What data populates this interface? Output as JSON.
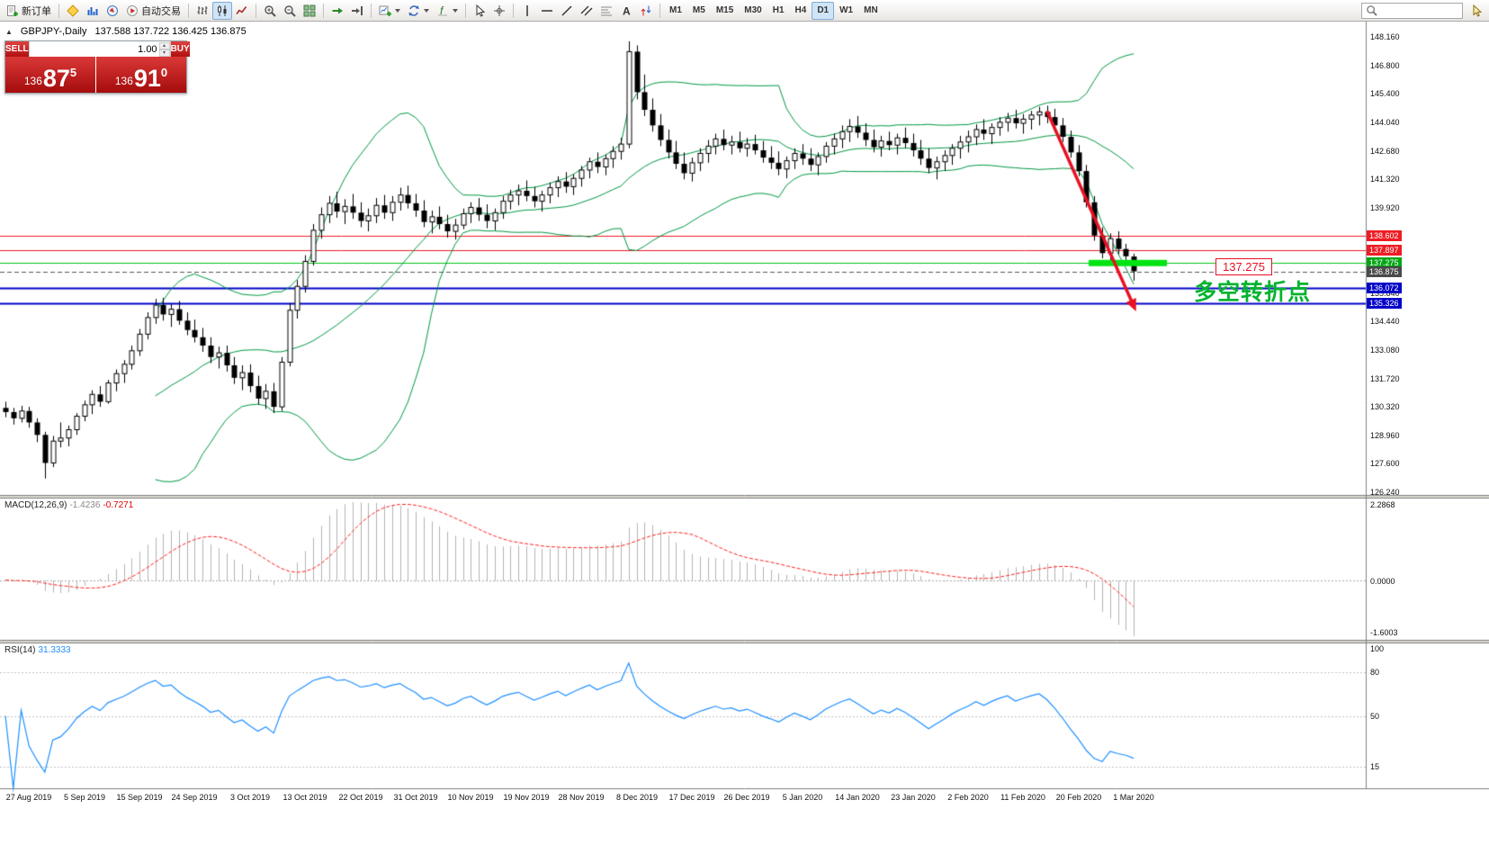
{
  "toolbar": {
    "groups": [
      {
        "items": [
          {
            "icon": "new-order",
            "label": "新订单",
            "name": "new-order-button"
          }
        ]
      },
      {
        "items": [
          {
            "icon": "metaeditor",
            "name": "metaeditor-button"
          },
          {
            "icon": "market-watch",
            "name": "market-watch-button"
          },
          {
            "icon": "navigator",
            "name": "navigator-button"
          },
          {
            "icon": "autotrading",
            "label": "自动交易",
            "name": "autotrading-button"
          }
        ]
      },
      {
        "items": [
          {
            "icon": "bar-chart",
            "name": "bar-chart-button"
          },
          {
            "icon": "candlestick",
            "name": "candlestick-button",
            "active": true
          },
          {
            "icon": "line-chart",
            "name": "line-chart-button"
          }
        ]
      },
      {
        "items": [
          {
            "icon": "zoom-in",
            "name": "zoom-in-button"
          },
          {
            "icon": "zoom-out",
            "name": "zoom-out-button"
          },
          {
            "icon": "tile-windows",
            "name": "tile-windows-button"
          }
        ]
      },
      {
        "items": [
          {
            "icon": "auto-scroll",
            "name": "auto-scroll-button"
          },
          {
            "icon": "chart-shift",
            "name": "chart-shift-button"
          }
        ]
      },
      {
        "items": [
          {
            "icon": "new-chart",
            "name": "new-chart-button",
            "dropdown": true
          },
          {
            "icon": "profiles",
            "name": "profiles-button",
            "dropdown": true
          },
          {
            "icon": "indicators",
            "name": "indicators-button",
            "dropdown": true
          }
        ]
      },
      {
        "items": [
          {
            "icon": "cursor",
            "name": "cursor-button"
          },
          {
            "icon": "crosshair",
            "name": "crosshair-button"
          }
        ]
      },
      {
        "items": [
          {
            "icon": "vertical-line",
            "name": "vertical-line-button"
          },
          {
            "icon": "horizontal-line",
            "name": "horizontal-line-button"
          },
          {
            "icon": "trendline",
            "name": "trendline-button"
          },
          {
            "icon": "channel",
            "name": "channel-button"
          },
          {
            "icon": "fibonacci",
            "name": "fibonacci-button"
          },
          {
            "icon": "text-label",
            "name": "text-button"
          },
          {
            "icon": "arrows",
            "name": "arrows-button"
          }
        ]
      }
    ],
    "timeframes": {
      "items": [
        "M1",
        "M5",
        "M15",
        "M30",
        "H1",
        "H4",
        "D1",
        "W1",
        "MN"
      ],
      "active": "D1"
    },
    "search_value": ""
  },
  "chart": {
    "title": "GBPJPY-,Daily",
    "ohlc_line": "137.588 137.722 136.425 136.875",
    "one_click": {
      "sell_label": "SELL",
      "buy_label": "BUY",
      "volume": "1.00",
      "sell_price": {
        "prefix": "136",
        "big": "87",
        "sup": "5"
      },
      "buy_price": {
        "prefix": "136",
        "big": "91",
        "sup": "0"
      }
    },
    "search_value": ""
  },
  "chart_data": {
    "type": "candlestick",
    "symbol": "GBPJPY",
    "period": "Daily",
    "title": "GBPJPY-,Daily",
    "ohlc_display": {
      "open": "137.588",
      "high": "137.722",
      "low": "136.425",
      "close": "136.875"
    },
    "ylim": [
      126.24,
      148.16
    ],
    "price_axis_labels": [
      "148.160",
      "146.800",
      "145.400",
      "144.040",
      "142.680",
      "141.320",
      "139.920",
      "138.560",
      "137.200",
      "135.840",
      "134.440",
      "133.080",
      "131.720",
      "130.320",
      "128.960",
      "127.600",
      "126.240"
    ],
    "time_axis_labels": [
      "27 Aug 2019",
      "5 Sep 2019",
      "15 Sep 2019",
      "24 Sep 2019",
      "3 Oct 2019",
      "13 Oct 2019",
      "22 Oct 2019",
      "31 Oct 2019",
      "10 Nov 2019",
      "19 Nov 2019",
      "28 Nov 2019",
      "8 Dec 2019",
      "17 Dec 2019",
      "26 Dec 2019",
      "5 Jan 2020",
      "14 Jan 2020",
      "23 Jan 2020",
      "2 Feb 2020",
      "11 Feb 2020",
      "20 Feb 2020",
      "1 Mar 2020"
    ],
    "candles": [
      [
        130.3,
        130.6,
        129.85,
        130.1
      ],
      [
        130.1,
        130.3,
        129.5,
        129.8
      ],
      [
        129.8,
        130.4,
        129.6,
        130.15
      ],
      [
        130.15,
        130.35,
        129.35,
        129.6
      ],
      [
        129.6,
        129.8,
        128.65,
        129.0
      ],
      [
        129.0,
        129.15,
        126.9,
        127.65
      ],
      [
        127.65,
        128.95,
        127.45,
        128.7
      ],
      [
        128.7,
        129.6,
        128.4,
        128.85
      ],
      [
        128.85,
        129.45,
        128.45,
        129.25
      ],
      [
        129.25,
        130.05,
        129.0,
        129.9
      ],
      [
        129.9,
        130.65,
        129.65,
        130.45
      ],
      [
        130.45,
        131.15,
        130.0,
        130.95
      ],
      [
        130.95,
        131.35,
        130.35,
        130.6
      ],
      [
        130.6,
        131.65,
        130.5,
        131.5
      ],
      [
        131.5,
        132.15,
        131.1,
        131.95
      ],
      [
        131.95,
        132.6,
        131.5,
        132.4
      ],
      [
        132.4,
        133.3,
        132.15,
        133.05
      ],
      [
        133.05,
        134.1,
        132.8,
        133.85
      ],
      [
        133.85,
        134.9,
        133.6,
        134.65
      ],
      [
        134.65,
        135.55,
        134.35,
        135.25
      ],
      [
        135.25,
        135.6,
        134.5,
        134.8
      ],
      [
        134.8,
        135.3,
        134.2,
        135.05
      ],
      [
        135.05,
        135.45,
        134.3,
        134.5
      ],
      [
        134.5,
        134.9,
        133.8,
        134.05
      ],
      [
        134.05,
        134.55,
        133.45,
        133.7
      ],
      [
        133.7,
        134.15,
        133.0,
        133.3
      ],
      [
        133.3,
        133.7,
        132.45,
        132.75
      ],
      [
        132.75,
        133.25,
        132.2,
        132.95
      ],
      [
        132.95,
        133.3,
        132.05,
        132.35
      ],
      [
        132.35,
        132.75,
        131.45,
        131.75
      ],
      [
        131.75,
        132.35,
        131.15,
        132.0
      ],
      [
        132.0,
        132.4,
        131.05,
        131.35
      ],
      [
        131.35,
        131.85,
        130.45,
        130.75
      ],
      [
        130.75,
        131.45,
        130.25,
        131.1
      ],
      [
        131.1,
        131.5,
        130.05,
        130.35
      ],
      [
        130.35,
        132.75,
        130.15,
        132.5
      ],
      [
        132.5,
        135.35,
        132.3,
        135.0
      ],
      [
        135.0,
        136.45,
        134.6,
        136.15
      ],
      [
        136.15,
        137.65,
        135.85,
        137.35
      ],
      [
        137.35,
        139.15,
        137.15,
        138.85
      ],
      [
        138.85,
        139.95,
        138.45,
        139.6
      ],
      [
        139.6,
        140.5,
        139.2,
        140.15
      ],
      [
        140.15,
        140.7,
        139.45,
        139.75
      ],
      [
        139.75,
        140.35,
        139.15,
        140.0
      ],
      [
        140.0,
        140.6,
        139.4,
        139.7
      ],
      [
        139.7,
        140.2,
        139.0,
        139.3
      ],
      [
        139.3,
        139.9,
        138.8,
        139.55
      ],
      [
        139.55,
        140.4,
        139.2,
        140.05
      ],
      [
        140.05,
        140.55,
        139.4,
        139.7
      ],
      [
        139.7,
        140.5,
        139.3,
        140.2
      ],
      [
        140.2,
        140.9,
        139.8,
        140.55
      ],
      [
        140.55,
        141.0,
        139.9,
        140.15
      ],
      [
        140.15,
        140.6,
        139.5,
        139.8
      ],
      [
        139.8,
        140.3,
        139.0,
        139.25
      ],
      [
        139.25,
        139.8,
        138.7,
        139.5
      ],
      [
        139.5,
        140.0,
        138.9,
        139.15
      ],
      [
        139.15,
        139.6,
        138.5,
        138.8
      ],
      [
        138.8,
        139.4,
        138.4,
        139.1
      ],
      [
        139.1,
        139.9,
        138.9,
        139.65
      ],
      [
        139.65,
        140.2,
        139.2,
        139.95
      ],
      [
        139.95,
        140.4,
        139.3,
        139.6
      ],
      [
        139.6,
        140.1,
        138.95,
        139.3
      ],
      [
        139.3,
        139.9,
        138.85,
        139.7
      ],
      [
        139.7,
        140.5,
        139.4,
        140.25
      ],
      [
        140.25,
        140.8,
        139.85,
        140.55
      ],
      [
        140.55,
        141.05,
        140.05,
        140.75
      ],
      [
        140.75,
        141.25,
        140.25,
        140.5
      ],
      [
        140.5,
        140.95,
        139.95,
        140.25
      ],
      [
        140.25,
        140.75,
        139.75,
        140.55
      ],
      [
        140.55,
        141.15,
        140.15,
        140.9
      ],
      [
        140.9,
        141.45,
        140.45,
        141.2
      ],
      [
        141.2,
        141.65,
        140.65,
        140.95
      ],
      [
        140.95,
        141.55,
        140.55,
        141.35
      ],
      [
        141.35,
        141.95,
        140.95,
        141.75
      ],
      [
        141.75,
        142.35,
        141.35,
        142.15
      ],
      [
        142.15,
        142.6,
        141.6,
        141.9
      ],
      [
        141.9,
        142.5,
        141.5,
        142.3
      ],
      [
        142.3,
        142.9,
        141.85,
        142.65
      ],
      [
        142.65,
        143.3,
        142.25,
        143.0
      ],
      [
        143.0,
        147.95,
        142.8,
        147.45
      ],
      [
        147.45,
        147.75,
        145.15,
        145.5
      ],
      [
        145.5,
        146.35,
        144.35,
        144.65
      ],
      [
        144.65,
        145.2,
        143.6,
        143.9
      ],
      [
        143.9,
        144.45,
        142.9,
        143.2
      ],
      [
        143.2,
        143.7,
        142.3,
        142.6
      ],
      [
        142.6,
        143.15,
        141.8,
        142.05
      ],
      [
        142.05,
        142.6,
        141.3,
        141.6
      ],
      [
        141.6,
        142.35,
        141.2,
        142.1
      ],
      [
        142.1,
        142.8,
        141.7,
        142.55
      ],
      [
        142.55,
        143.2,
        142.1,
        142.9
      ],
      [
        142.9,
        143.5,
        142.5,
        143.25
      ],
      [
        143.25,
        143.7,
        142.7,
        142.95
      ],
      [
        142.95,
        143.4,
        142.5,
        143.1
      ],
      [
        143.1,
        143.6,
        142.6,
        142.8
      ],
      [
        142.8,
        143.3,
        142.4,
        143.0
      ],
      [
        143.0,
        143.45,
        142.5,
        142.7
      ],
      [
        142.7,
        143.15,
        142.1,
        142.35
      ],
      [
        142.35,
        142.9,
        141.8,
        142.1
      ],
      [
        142.1,
        142.65,
        141.5,
        141.8
      ],
      [
        141.8,
        142.4,
        141.35,
        142.2
      ],
      [
        142.2,
        142.8,
        141.8,
        142.55
      ],
      [
        142.55,
        143.0,
        142.0,
        142.3
      ],
      [
        142.3,
        142.8,
        141.7,
        142.0
      ],
      [
        142.0,
        142.6,
        141.5,
        142.4
      ],
      [
        142.4,
        143.1,
        142.1,
        142.9
      ],
      [
        142.9,
        143.5,
        142.5,
        143.25
      ],
      [
        143.25,
        143.9,
        142.8,
        143.6
      ],
      [
        143.6,
        144.2,
        143.1,
        143.85
      ],
      [
        143.85,
        144.35,
        143.3,
        143.55
      ],
      [
        143.55,
        144.0,
        142.9,
        143.2
      ],
      [
        143.2,
        143.7,
        142.6,
        142.85
      ],
      [
        142.85,
        143.4,
        142.4,
        143.15
      ],
      [
        143.15,
        143.6,
        142.7,
        142.95
      ],
      [
        142.95,
        143.5,
        142.5,
        143.3
      ],
      [
        143.3,
        143.8,
        142.8,
        143.05
      ],
      [
        143.05,
        143.5,
        142.4,
        142.7
      ],
      [
        142.7,
        143.2,
        142.0,
        142.3
      ],
      [
        142.3,
        142.8,
        141.6,
        141.85
      ],
      [
        141.85,
        142.4,
        141.3,
        142.15
      ],
      [
        142.15,
        142.7,
        141.7,
        142.45
      ],
      [
        142.45,
        143.0,
        142.0,
        142.8
      ],
      [
        142.8,
        143.4,
        142.3,
        143.1
      ],
      [
        143.1,
        143.65,
        142.6,
        143.35
      ],
      [
        143.35,
        143.95,
        142.95,
        143.7
      ],
      [
        143.7,
        144.2,
        143.2,
        143.5
      ],
      [
        143.5,
        144.0,
        143.0,
        143.8
      ],
      [
        143.8,
        144.3,
        143.4,
        144.05
      ],
      [
        144.05,
        144.5,
        143.6,
        144.25
      ],
      [
        144.25,
        144.65,
        143.75,
        144.0
      ],
      [
        144.0,
        144.45,
        143.5,
        144.2
      ],
      [
        144.2,
        144.6,
        143.7,
        144.4
      ],
      [
        144.4,
        144.8,
        143.9,
        144.55
      ],
      [
        144.55,
        144.85,
        144.0,
        144.3
      ],
      [
        144.3,
        144.7,
        143.6,
        143.9
      ],
      [
        143.9,
        144.25,
        143.1,
        143.35
      ],
      [
        143.35,
        143.65,
        142.35,
        142.6
      ],
      [
        142.6,
        142.95,
        141.45,
        141.7
      ],
      [
        141.7,
        142.0,
        139.95,
        140.2
      ],
      [
        140.2,
        140.5,
        138.35,
        138.6
      ],
      [
        138.6,
        139.0,
        137.5,
        137.75
      ],
      [
        137.75,
        138.7,
        137.4,
        138.45
      ],
      [
        138.45,
        138.8,
        137.7,
        137.95
      ],
      [
        137.95,
        138.2,
        137.3,
        137.6
      ],
      [
        137.588,
        137.722,
        136.425,
        136.875
      ]
    ],
    "levels": [
      {
        "price": 138.602,
        "tag": "138.602",
        "color": "#ee1c25",
        "style": "solid",
        "width": 1,
        "tag_bg": "#ee1c25"
      },
      {
        "price": 137.897,
        "tag": "137.897",
        "color": "#ee1c25",
        "style": "solid",
        "width": 1,
        "tag_bg": "#ee1c25"
      },
      {
        "price": 137.275,
        "tag": "137.275",
        "color": "#00c314",
        "style": "solid",
        "width": 1,
        "tag_bg": "#00a614"
      },
      {
        "price": 136.875,
        "tag": "136.875",
        "color": "#555555",
        "style": "dash",
        "width": 1,
        "tag_bg": "#4a4a4a"
      },
      {
        "price": 136.072,
        "tag": "136.072",
        "color": "#0202c8",
        "style": "solid",
        "width": 2,
        "tag_bg": "#0202c8"
      },
      {
        "price": 135.326,
        "tag": "135.326",
        "color": "#0202c8",
        "style": "solid",
        "width": 2,
        "tag_bg": "#0202c8"
      }
    ],
    "indicators": {
      "bollinger": {
        "period": 20,
        "deviation": 2,
        "color": "#009944"
      },
      "macd": {
        "name": "MACD(12,26,9)",
        "main_value": "-1.4236",
        "signal_value": "-0.7271",
        "scale_labels": [
          "2.2868",
          "0.0000",
          "-1.6003"
        ],
        "hist_color": "#b4b4b4",
        "signal_color": "#ff2020"
      },
      "rsi": {
        "name": "RSI(14)",
        "value": "31.3333",
        "period": 14,
        "scale_labels": [
          "100",
          "80",
          "50",
          "15"
        ],
        "scale_values": [
          100,
          80,
          50,
          15
        ],
        "color": "#1e90ff"
      }
    },
    "annotations": {
      "arrow": {
        "from_candle": 132,
        "from_price": 144.6,
        "to_candle": 143.3,
        "to_price": 134.95,
        "color": "#e81123"
      },
      "highlight_bar": {
        "price": 137.275,
        "from_candle": 137.3,
        "to_x": 1297,
        "color": "#00e412",
        "thickness": 7
      },
      "price_box": {
        "text": "137.275",
        "color": "#e81123"
      },
      "turning_point": {
        "text": "多空转折点",
        "color": "#00b32e"
      }
    }
  }
}
